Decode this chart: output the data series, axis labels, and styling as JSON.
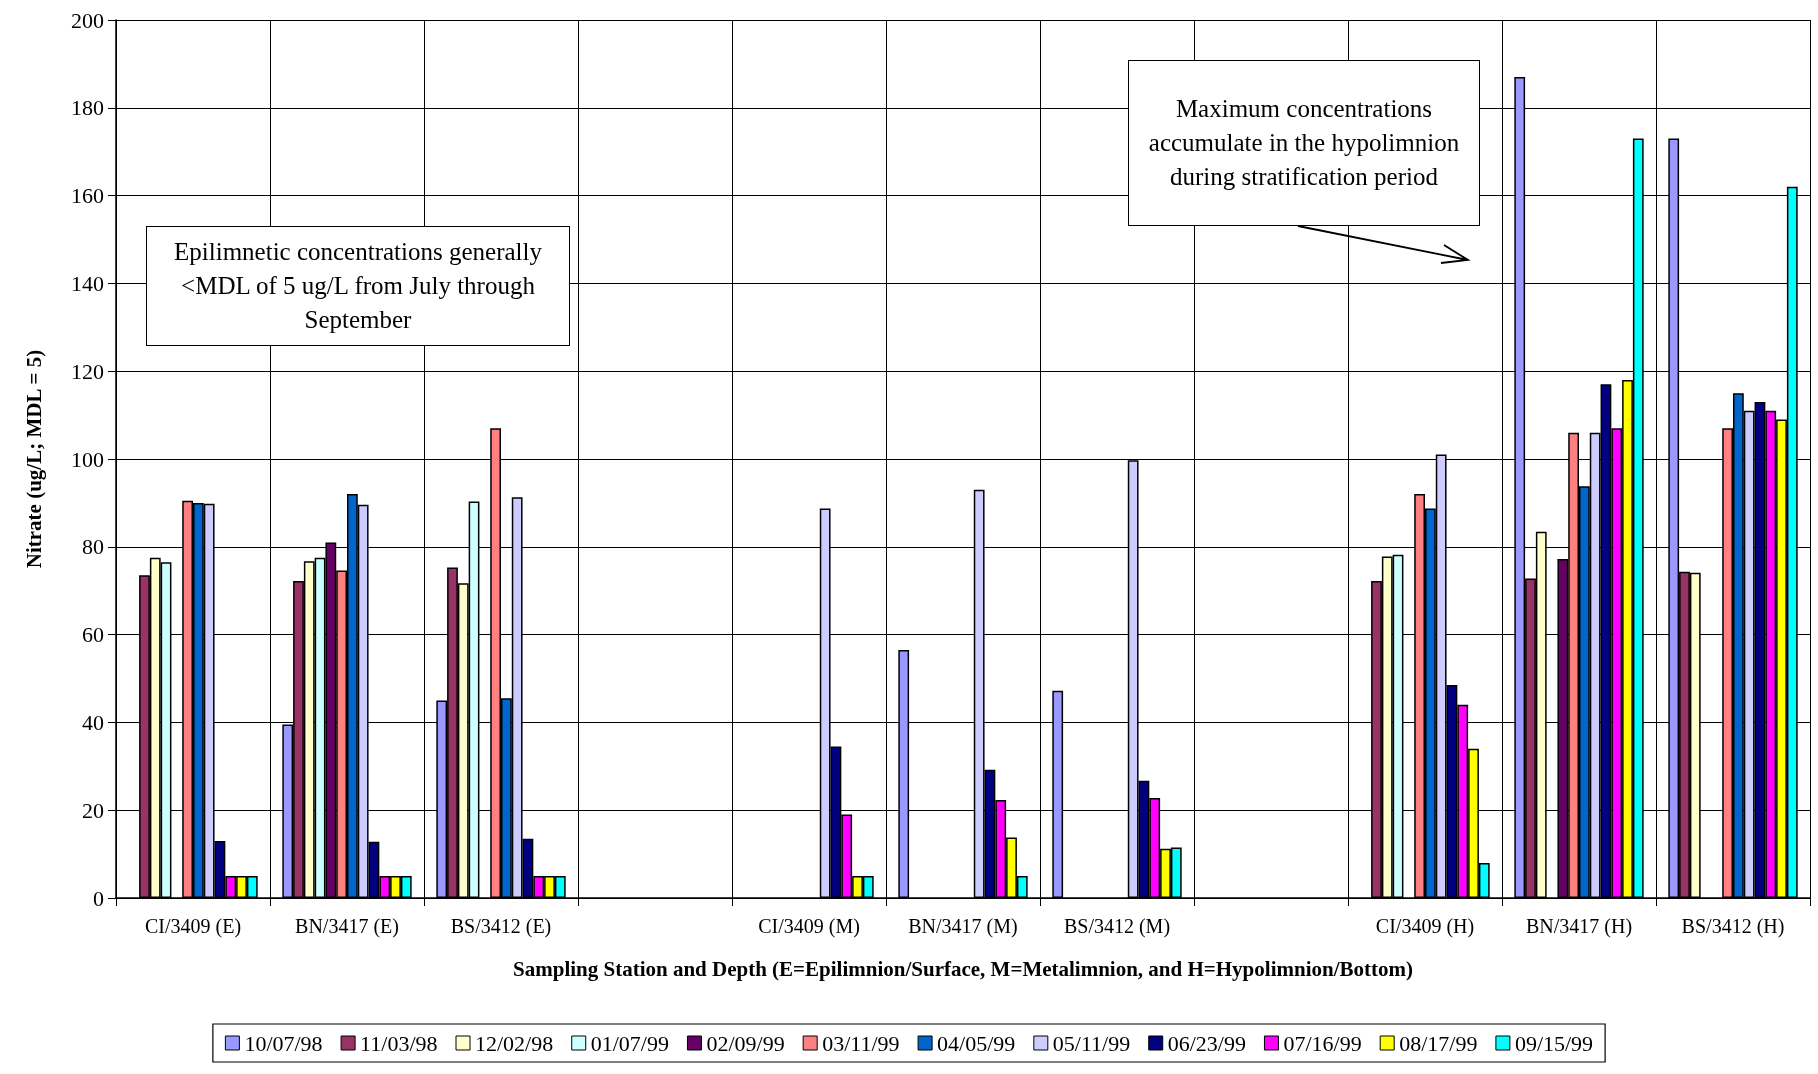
{
  "chart_data": {
    "type": "bar",
    "xlabel": "Sampling Station and Depth (E=Epilimnion/Surface, M=Metalimnion, and H=Hypolimnion/Bottom)",
    "ylabel": "Nitrate (ug/L; MDL = 5)",
    "categories": [
      "CI/3409 (E)",
      "BN/3417 (E)",
      "BS/3412 (E)",
      null,
      "CI/3409 (M)",
      "BN/3417 (M)",
      "BS/3412 (M)",
      null,
      "CI/3409 (H)",
      "BN/3417 (H)",
      "BS/3412 (H)"
    ],
    "series": [
      {
        "name": "10/07/98",
        "color": "#9999ff",
        "values": [
          null,
          39.5,
          45,
          null,
          null,
          56.5,
          47.2,
          null,
          null,
          187,
          173
        ]
      },
      {
        "name": "11/03/98",
        "color": "#993366",
        "values": [
          73.5,
          72.2,
          75.3,
          null,
          null,
          null,
          null,
          null,
          72.2,
          72.8,
          74.3
        ]
      },
      {
        "name": "12/02/98",
        "color": "#ffffcc",
        "values": [
          77.5,
          76.7,
          71.7,
          null,
          null,
          null,
          null,
          null,
          77.8,
          83.4,
          74.1
        ]
      },
      {
        "name": "01/07/99",
        "color": "#ccffff",
        "values": [
          76.5,
          77.5,
          90.3,
          null,
          null,
          null,
          null,
          null,
          78.2,
          null,
          null
        ]
      },
      {
        "name": "02/09/99",
        "color": "#660066",
        "values": [
          null,
          81,
          null,
          null,
          null,
          null,
          null,
          null,
          null,
          77.2,
          null
        ]
      },
      {
        "name": "03/11/99",
        "color": "#ff8080",
        "values": [
          90.5,
          74.6,
          107,
          null,
          null,
          null,
          null,
          null,
          92,
          106,
          107
        ]
      },
      {
        "name": "04/05/99",
        "color": "#0066cc",
        "values": [
          90,
          92,
          45.5,
          null,
          null,
          null,
          null,
          null,
          88.7,
          93.8,
          115
        ]
      },
      {
        "name": "05/11/99",
        "color": "#ccccff",
        "values": [
          89.8,
          89.6,
          91.3,
          null,
          88.7,
          93,
          99.7,
          null,
          101,
          106,
          111
        ]
      },
      {
        "name": "06/23/99",
        "color": "#000080",
        "values": [
          13,
          12.8,
          13.5,
          null,
          34.5,
          29.2,
          26.7,
          null,
          48.5,
          117,
          113
        ]
      },
      {
        "name": "07/16/99",
        "color": "#ff00ff",
        "values": [
          5,
          5,
          5,
          null,
          19,
          22.3,
          22.8,
          null,
          44,
          107,
          111
        ]
      },
      {
        "name": "08/17/99",
        "color": "#ffff00",
        "values": [
          5,
          5,
          5,
          null,
          5,
          13.8,
          11.2,
          null,
          34,
          118,
          109
        ]
      },
      {
        "name": "09/15/99",
        "color": "#00ffff",
        "values": [
          5,
          5,
          5,
          null,
          5,
          5,
          11.5,
          null,
          8,
          173,
          162
        ]
      }
    ],
    "ylim": [
      0,
      200
    ],
    "yticks": [
      0,
      20,
      40,
      60,
      80,
      100,
      120,
      140,
      160,
      180,
      200
    ],
    "grid": true,
    "legend": "bottom",
    "annotations": [
      "Epilimnetic concentrations generally <MDL of 5 ug/L from July through September",
      "Maximum concentrations accumulate in the hypolimnion during stratification period"
    ]
  }
}
